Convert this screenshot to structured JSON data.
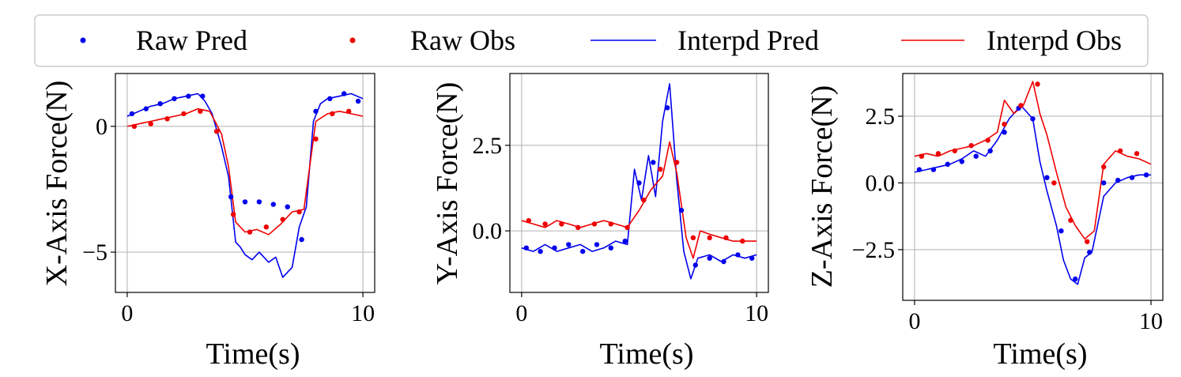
{
  "legend": {
    "entries": [
      {
        "label": "Raw Pred",
        "color": "#0000ee",
        "style": "marker"
      },
      {
        "label": "Raw Obs",
        "color": "#ee0000",
        "style": "marker"
      },
      {
        "label": "Interpd Pred",
        "color": "#0000ee",
        "style": "line"
      },
      {
        "label": "Interpd Obs",
        "color": "#ee0000",
        "style": "line"
      }
    ]
  },
  "chart_data": [
    {
      "type": "line",
      "ylabel": "X-Axis Force(N)",
      "xlabel": "Time(s)",
      "xlim": [
        -0.5,
        10.5
      ],
      "ylim": [
        -6.6,
        2.1
      ],
      "xticks": [
        {
          "v": 0,
          "label": "0"
        },
        {
          "v": 10,
          "label": "10"
        }
      ],
      "yticks": [
        {
          "v": 0,
          "label": "0"
        },
        {
          "v": -5,
          "label": "−5"
        }
      ],
      "grid": true,
      "series": [
        {
          "name": "Interpd Pred",
          "color": "#0000ee",
          "x": [
            0,
            0.5,
            1,
            1.5,
            2,
            2.5,
            3,
            3.3,
            3.6,
            4,
            4.3,
            4.6,
            4.8,
            5,
            5.3,
            5.6,
            6,
            6.3,
            6.6,
            7,
            7.3,
            7.6,
            7.9,
            8.2,
            8.5,
            9,
            9.5,
            10
          ],
          "y": [
            0.4,
            0.6,
            0.8,
            0.9,
            1.1,
            1.2,
            1.3,
            1.0,
            0.5,
            -0.8,
            -2.0,
            -4.6,
            -4.8,
            -5.1,
            -5.3,
            -5.0,
            -5.4,
            -5.2,
            -6.0,
            -5.6,
            -4.0,
            -3.2,
            0.2,
            0.9,
            1.1,
            1.2,
            1.3,
            1.1
          ]
        },
        {
          "name": "Interpd Obs",
          "color": "#ee0000",
          "x": [
            0,
            0.5,
            1,
            1.5,
            2,
            2.5,
            3,
            3.5,
            4,
            4.3,
            4.6,
            5,
            5.5,
            6,
            6.5,
            7,
            7.5,
            8,
            8.5,
            9,
            9.5,
            10
          ],
          "y": [
            0.0,
            0.1,
            0.2,
            0.3,
            0.4,
            0.5,
            0.7,
            0.6,
            -0.3,
            -1.6,
            -3.8,
            -4.2,
            -4.1,
            -4.3,
            -3.9,
            -3.4,
            -3.3,
            0.2,
            0.5,
            0.6,
            0.5,
            0.4
          ]
        },
        {
          "name": "Raw Pred",
          "color": "#0000ee",
          "x": [
            0.2,
            0.8,
            1.4,
            2.0,
            2.6,
            3.2,
            3.8,
            4.4,
            5.0,
            5.6,
            6.2,
            6.8,
            7.4,
            8.0,
            8.6,
            9.2,
            9.8
          ],
          "y": [
            0.5,
            0.7,
            0.9,
            1.1,
            1.2,
            1.2,
            -0.2,
            -2.8,
            -3.0,
            -3.0,
            -3.1,
            -3.2,
            -4.5,
            0.6,
            1.1,
            1.3,
            1.0
          ]
        },
        {
          "name": "Raw Obs",
          "color": "#ee0000",
          "x": [
            0.3,
            1.0,
            1.7,
            2.4,
            3.1,
            3.8,
            4.5,
            5.2,
            5.9,
            6.6,
            7.3,
            8.0,
            8.7,
            9.4
          ],
          "y": [
            0.0,
            0.1,
            0.3,
            0.5,
            0.6,
            -0.2,
            -3.5,
            -4.2,
            -4.0,
            -3.7,
            -3.4,
            -0.5,
            0.5,
            0.6
          ]
        }
      ]
    },
    {
      "type": "line",
      "ylabel": "Y-Axis Force(N)",
      "xlabel": "Time(s)",
      "xlim": [
        -0.5,
        10.5
      ],
      "ylim": [
        -1.8,
        4.6
      ],
      "xticks": [
        {
          "v": 0,
          "label": "0"
        },
        {
          "v": 10,
          "label": "10"
        }
      ],
      "yticks": [
        {
          "v": 2.5,
          "label": "2.5"
        },
        {
          "v": 0,
          "label": "0.0"
        }
      ],
      "grid": true,
      "series": [
        {
          "name": "Interpd Pred",
          "color": "#0000ee",
          "x": [
            0,
            0.5,
            1,
            1.5,
            2,
            2.5,
            3,
            3.5,
            4,
            4.5,
            4.8,
            5.1,
            5.4,
            5.7,
            6.0,
            6.3,
            6.6,
            6.9,
            7.2,
            7.5,
            8,
            8.5,
            9,
            9.5,
            10
          ],
          "y": [
            -0.5,
            -0.6,
            -0.4,
            -0.6,
            -0.5,
            -0.4,
            -0.6,
            -0.5,
            -0.3,
            -0.4,
            1.8,
            0.9,
            2.2,
            1.0,
            3.2,
            4.3,
            1.5,
            -0.6,
            -1.4,
            -0.8,
            -0.7,
            -0.9,
            -0.7,
            -0.8,
            -0.7
          ]
        },
        {
          "name": "Interpd Obs",
          "color": "#ee0000",
          "x": [
            0,
            0.5,
            1,
            1.5,
            2,
            2.5,
            3,
            3.5,
            4,
            4.5,
            5,
            5.5,
            6,
            6.3,
            6.6,
            7,
            7.3,
            7.6,
            8,
            8.5,
            9,
            9.5,
            10
          ],
          "y": [
            0.3,
            0.2,
            0.1,
            0.3,
            0.2,
            0.1,
            0.2,
            0.3,
            0.2,
            0.1,
            0.6,
            1.2,
            1.6,
            2.6,
            1.7,
            -0.2,
            -0.8,
            0.0,
            -0.1,
            -0.2,
            -0.3,
            -0.3,
            -0.3
          ]
        },
        {
          "name": "Raw Pred",
          "color": "#0000ee",
          "x": [
            0.2,
            0.8,
            1.4,
            2.0,
            2.6,
            3.2,
            3.8,
            4.4,
            5.0,
            5.6,
            6.2,
            6.8,
            7.4,
            8.0,
            8.6,
            9.2,
            9.8
          ],
          "y": [
            -0.5,
            -0.6,
            -0.5,
            -0.4,
            -0.6,
            -0.4,
            -0.5,
            -0.3,
            1.4,
            2.0,
            3.6,
            0.6,
            -1.0,
            -0.8,
            -0.9,
            -0.7,
            -0.8
          ]
        },
        {
          "name": "Raw Obs",
          "color": "#ee0000",
          "x": [
            0.3,
            1.0,
            1.7,
            2.4,
            3.1,
            3.8,
            4.5,
            5.2,
            5.9,
            6.6,
            7.3,
            8.0,
            8.7,
            9.4
          ],
          "y": [
            0.3,
            0.2,
            0.2,
            0.1,
            0.2,
            0.2,
            0.1,
            0.9,
            1.8,
            2.0,
            -0.2,
            -0.2,
            -0.2,
            -0.3
          ]
        }
      ]
    },
    {
      "type": "line",
      "ylabel": "Z-Axis Force(N)",
      "xlabel": "Time(s)",
      "xlim": [
        -0.5,
        10.5
      ],
      "ylim": [
        -4.4,
        4.1
      ],
      "xticks": [
        {
          "v": 0,
          "label": "0"
        },
        {
          "v": 10,
          "label": "10"
        }
      ],
      "yticks": [
        {
          "v": 2.5,
          "label": "2.5"
        },
        {
          "v": 0,
          "label": "0.0"
        },
        {
          "v": -2.5,
          "label": "−2.5"
        }
      ],
      "grid": true,
      "series": [
        {
          "name": "Interpd Pred",
          "color": "#0000ee",
          "x": [
            0,
            0.5,
            1,
            1.5,
            2,
            2.5,
            3,
            3.5,
            4,
            4.5,
            5,
            5.3,
            5.6,
            6,
            6.3,
            6.6,
            6.9,
            7.2,
            7.5,
            8,
            8.5,
            9,
            9.5,
            10
          ],
          "y": [
            0.4,
            0.5,
            0.6,
            0.7,
            0.9,
            1.2,
            1.0,
            1.6,
            2.4,
            2.9,
            2.4,
            0.8,
            -0.3,
            -1.6,
            -2.9,
            -3.6,
            -3.8,
            -2.8,
            -2.6,
            -0.5,
            0.0,
            0.2,
            0.3,
            0.3
          ]
        },
        {
          "name": "Interpd Obs",
          "color": "#ee0000",
          "x": [
            0,
            0.5,
            1,
            1.5,
            2,
            2.5,
            3,
            3.5,
            3.8,
            4.2,
            4.6,
            5.0,
            5.3,
            5.6,
            6,
            6.4,
            6.8,
            7.2,
            7.6,
            8,
            8.5,
            9,
            9.5,
            10
          ],
          "y": [
            1.0,
            1.1,
            1.0,
            1.2,
            1.3,
            1.4,
            1.6,
            1.9,
            3.1,
            2.6,
            2.9,
            3.8,
            2.6,
            1.8,
            0.4,
            -0.9,
            -1.6,
            -2.1,
            -1.8,
            0.7,
            1.2,
            1.0,
            0.9,
            0.7
          ]
        },
        {
          "name": "Raw Pred",
          "color": "#0000ee",
          "x": [
            0.2,
            0.8,
            1.4,
            2.0,
            2.6,
            3.2,
            3.8,
            4.4,
            5.0,
            5.6,
            6.2,
            6.8,
            7.4,
            8.0,
            8.6,
            9.2,
            9.8
          ],
          "y": [
            0.5,
            0.5,
            0.7,
            0.8,
            1.0,
            1.2,
            1.9,
            2.8,
            2.4,
            0.2,
            -1.8,
            -3.6,
            -2.6,
            0.0,
            0.1,
            0.2,
            0.3
          ]
        },
        {
          "name": "Raw Obs",
          "color": "#ee0000",
          "x": [
            0.3,
            1.0,
            1.7,
            2.4,
            3.1,
            3.8,
            4.5,
            5.2,
            5.9,
            6.6,
            7.3,
            8.0,
            8.7,
            9.4
          ],
          "y": [
            1.0,
            1.1,
            1.2,
            1.4,
            1.6,
            2.2,
            2.9,
            3.7,
            0.0,
            -1.4,
            -2.2,
            0.6,
            1.2,
            1.1
          ]
        }
      ]
    }
  ]
}
